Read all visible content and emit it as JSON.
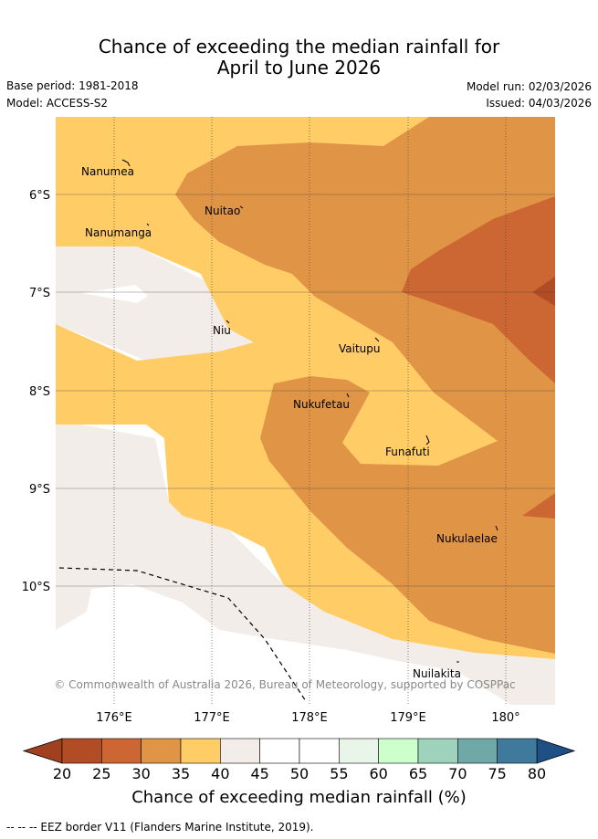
{
  "header": {
    "title_line1": "Chance of exceeding the median rainfall for",
    "title_line2": "April to June 2026",
    "base_period": "Base period: 1981-2018",
    "model": "Model: ACCESS-S2",
    "model_run": "Model run: 02/03/2026",
    "issued": "Issued: 04/03/2026"
  },
  "map": {
    "islands": [
      "Nanumea",
      "Nuitao",
      "Nanumanga",
      "Niu",
      "Vaitupu",
      "Nukufetau",
      "Funafuti",
      "Nukulaelae",
      "Nuilakita"
    ],
    "lat_labels": [
      "6°S",
      "7°S",
      "8°S",
      "9°S",
      "10°S"
    ],
    "lon_labels": [
      "176°E",
      "177°E",
      "178°E",
      "179°E",
      "180°"
    ],
    "copyright": "© Commonwealth of Australia 2026, Bureau of Meteorology, supported by COSPPac"
  },
  "colorbar": {
    "ticks": [
      "20",
      "25",
      "30",
      "35",
      "40",
      "45",
      "50",
      "55",
      "60",
      "65",
      "70",
      "75",
      "80"
    ],
    "colors": [
      "#b14c25",
      "#cc6632",
      "#e09446",
      "#ffcc66",
      "#f2ede8",
      "#ffffff",
      "#ffffff",
      "#eaf5ea",
      "#ccffcc",
      "#9fd2bc",
      "#70a8a8",
      "#3f7a9c"
    ],
    "under_color": "#a0401f",
    "over_color": "#1e4f85",
    "label": "Chance of exceeding median rainfall (%)"
  },
  "footnote": "-- -- -- EEZ border V11 (Flanders Marine Institute, 2019).",
  "palette": {
    "c25_30": "#cc6632",
    "c30_35": "#e09446",
    "c35_40": "#ffcc66",
    "c40_45": "#f2ede8",
    "c45_50": "#ffffff"
  }
}
